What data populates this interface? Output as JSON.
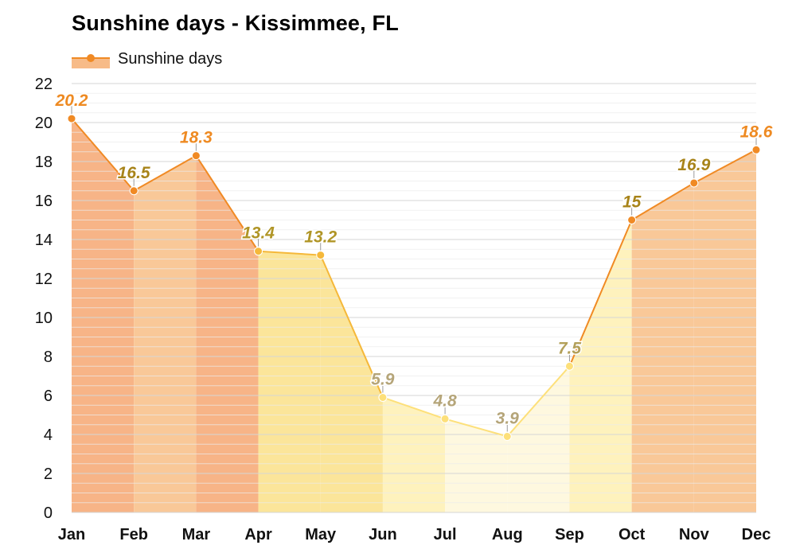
{
  "chart_data": {
    "type": "area",
    "title": "Sunshine days - Kissimmee, FL",
    "categories": [
      "Jan",
      "Feb",
      "Mar",
      "Apr",
      "May",
      "Jun",
      "Jul",
      "Aug",
      "Sep",
      "Oct",
      "Nov",
      "Dec"
    ],
    "series": [
      {
        "name": "Sunshine days",
        "values": [
          20.2,
          16.5,
          18.3,
          13.4,
          13.2,
          5.9,
          4.8,
          3.9,
          7.5,
          15,
          16.9,
          18.6
        ]
      }
    ],
    "data_labels": [
      "20.2",
      "16.5",
      "18.3",
      "13.4",
      "13.2",
      "5.9",
      "4.8",
      "3.9",
      "7.5",
      "15",
      "16.9",
      "18.6"
    ],
    "ylim": [
      0,
      22
    ],
    "yticks": [
      "0",
      "2",
      "4",
      "6",
      "8",
      "10",
      "12",
      "14",
      "16",
      "18",
      "20",
      "22"
    ],
    "xlabel": "",
    "ylabel": "",
    "grid": true,
    "legend_position": "top-left",
    "colors": {
      "line_high": "#f08a24",
      "line_mid": "#f5b83a",
      "line_low": "#fde07a",
      "fill_highest": "#f7b487",
      "fill_high": "#f9c898",
      "fill_mid": "#fbe59a",
      "fill_low": "#fef2bd",
      "fill_lowest": "#fef8df"
    }
  }
}
